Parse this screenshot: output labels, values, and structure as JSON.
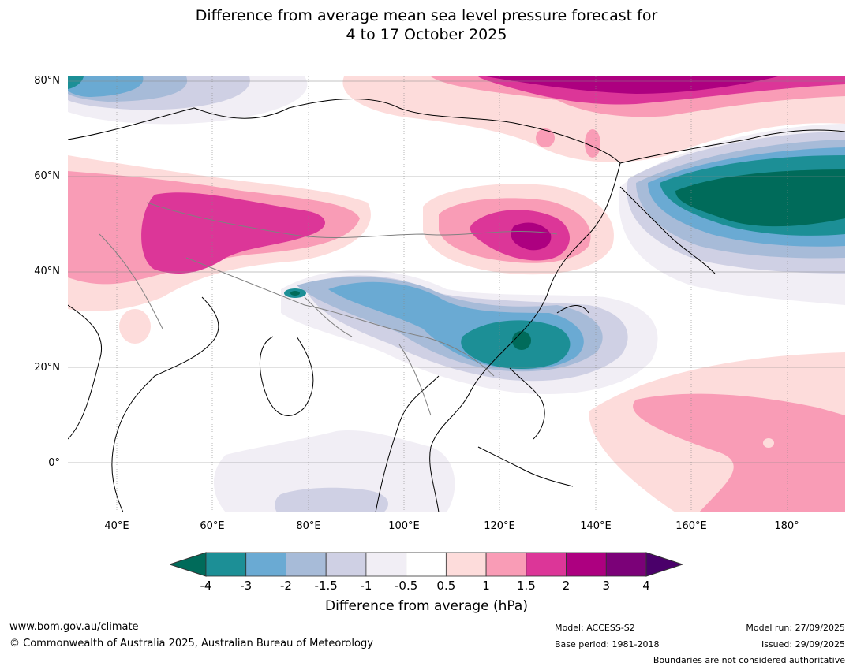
{
  "title": {
    "line1": "Difference from average mean sea level pressure forecast for",
    "line2": "4 to 17 October 2025"
  },
  "map": {
    "lat_labels": [
      "80°N",
      "60°N",
      "40°N",
      "20°N",
      "0°"
    ],
    "lon_labels": [
      "40°E",
      "60°E",
      "80°E",
      "100°E",
      "120°E",
      "140°E",
      "160°E",
      "180°"
    ]
  },
  "colorbar": {
    "ticks": [
      "-4",
      "-3",
      "-2",
      "-1.5",
      "-1",
      "-0.5",
      "0.5",
      "1",
      "1.5",
      "2",
      "3",
      "4"
    ],
    "colors": {
      "below_-4": "#006b5a",
      "-4_-3": "#1c8f96",
      "-3_-2": "#6aaad3",
      "-2_-1.5": "#a7bbd8",
      "-1.5_-1": "#cfd0e4",
      "-1_-0.5": "#f1eef5",
      "-0.5_0.5": "#ffffff",
      "0.5_1": "#fddcdb",
      "1_1.5": "#f99cb6",
      "1.5_2": "#dc3698",
      "2_3": "#ad0080",
      "3_4": "#7b0178",
      "above_4": "#4a006a"
    },
    "label": "Difference from average (hPa)"
  },
  "footer": {
    "website": "www.bom.gov.au/climate",
    "copyright": "© Commonwealth of Australia 2025, Australian Bureau of Meteorology",
    "model": "Model: ACCESS-S2",
    "base_period": "Base period: 1981-2018",
    "model_run": "Model run: 27/09/2025",
    "issued": "Issued: 29/09/2025",
    "disclaimer": "Boundaries are not considered authoritative"
  }
}
